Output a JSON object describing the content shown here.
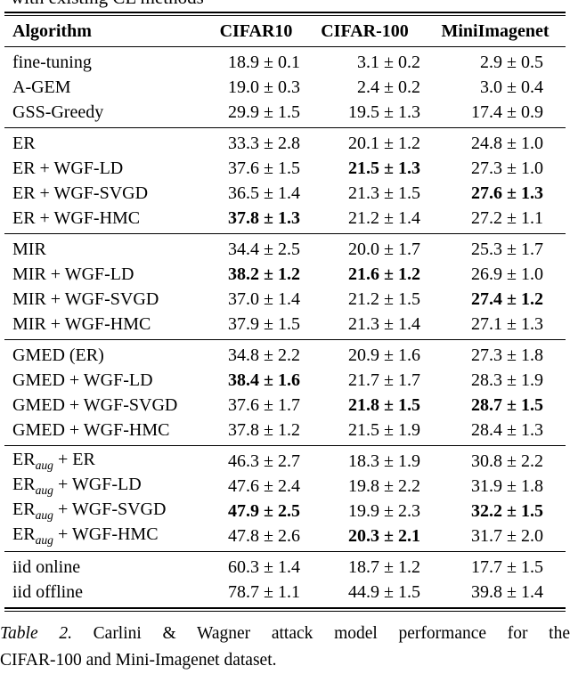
{
  "page": {
    "top_partial_text": "with existing CL methods",
    "caption": {
      "label": "Table 2.",
      "line1_rest": "Carlini & Wagner attack model performance for the",
      "line2": "CIFAR-100 and Mini-Imagenet dataset."
    }
  },
  "table": {
    "columns": [
      "Algorithm",
      "CIFAR10",
      "CIFAR-100",
      "MiniImagenet"
    ],
    "sections": [
      {
        "rows": [
          {
            "alg": [
              "fine-tuning",
              "",
              ""
            ],
            "values": [
              "18.9 ± 0.1",
              "3.1 ± 0.2",
              "2.9 ± 0.5"
            ],
            "bold": [
              false,
              false,
              false
            ]
          },
          {
            "alg": [
              "A-GEM",
              "",
              ""
            ],
            "values": [
              "19.0 ± 0.3",
              "2.4 ± 0.2",
              "3.0 ± 0.4"
            ],
            "bold": [
              false,
              false,
              false
            ]
          },
          {
            "alg": [
              "GSS-Greedy",
              "",
              ""
            ],
            "values": [
              "29.9 ± 1.5",
              "19.5 ± 1.3",
              "17.4 ± 0.9"
            ],
            "bold": [
              false,
              false,
              false
            ]
          }
        ]
      },
      {
        "rows": [
          {
            "alg": [
              "ER",
              "",
              ""
            ],
            "values": [
              "33.3 ± 2.8",
              "20.1 ± 1.2",
              "24.8 ± 1.0"
            ],
            "bold": [
              false,
              false,
              false
            ]
          },
          {
            "alg": [
              "ER + WGF-LD",
              "",
              ""
            ],
            "values": [
              "37.6 ± 1.5",
              "21.5 ± 1.3",
              "27.3 ± 1.0"
            ],
            "bold": [
              false,
              true,
              false
            ]
          },
          {
            "alg": [
              "ER + WGF-SVGD",
              "",
              ""
            ],
            "values": [
              "36.5 ± 1.4",
              "21.3 ± 1.5",
              "27.6 ± 1.3"
            ],
            "bold": [
              false,
              false,
              true
            ]
          },
          {
            "alg": [
              "ER + WGF-HMC",
              "",
              ""
            ],
            "values": [
              "37.8 ± 1.3",
              "21.2 ± 1.4",
              "27.2 ± 1.1"
            ],
            "bold": [
              true,
              false,
              false
            ]
          }
        ]
      },
      {
        "rows": [
          {
            "alg": [
              "MIR",
              "",
              ""
            ],
            "values": [
              "34.4 ± 2.5",
              "20.0 ± 1.7",
              "25.3 ± 1.7"
            ],
            "bold": [
              false,
              false,
              false
            ]
          },
          {
            "alg": [
              "MIR + WGF-LD",
              "",
              ""
            ],
            "values": [
              "38.2 ± 1.2",
              "21.6 ± 1.2",
              "26.9 ± 1.0"
            ],
            "bold": [
              true,
              true,
              false
            ]
          },
          {
            "alg": [
              "MIR + WGF-SVGD",
              "",
              ""
            ],
            "values": [
              "37.0 ± 1.4",
              "21.2 ± 1.5",
              "27.4 ± 1.2"
            ],
            "bold": [
              false,
              false,
              true
            ]
          },
          {
            "alg": [
              "MIR + WGF-HMC",
              "",
              ""
            ],
            "values": [
              "37.9 ± 1.5",
              "21.3 ± 1.4",
              "27.1 ± 1.3"
            ],
            "bold": [
              false,
              false,
              false
            ]
          }
        ]
      },
      {
        "rows": [
          {
            "alg": [
              "GMED (ER)",
              "",
              ""
            ],
            "values": [
              "34.8 ± 2.2",
              "20.9 ± 1.6",
              "27.3 ± 1.8"
            ],
            "bold": [
              false,
              false,
              false
            ]
          },
          {
            "alg": [
              "GMED + WGF-LD",
              "",
              ""
            ],
            "values": [
              "38.4 ± 1.6",
              "21.7 ± 1.7",
              "28.3 ± 1.9"
            ],
            "bold": [
              true,
              false,
              false
            ]
          },
          {
            "alg": [
              "GMED + WGF-SVGD",
              "",
              ""
            ],
            "values": [
              "37.6 ± 1.7",
              "21.8 ± 1.5",
              "28.7 ± 1.5"
            ],
            "bold": [
              false,
              true,
              true
            ]
          },
          {
            "alg": [
              "GMED + WGF-HMC",
              "",
              ""
            ],
            "values": [
              "37.8 ± 1.2",
              "21.5 ± 1.9",
              "28.4 ± 1.3"
            ],
            "bold": [
              false,
              false,
              false
            ]
          }
        ]
      },
      {
        "rows": [
          {
            "alg": [
              "ER",
              "aug",
              " + ER"
            ],
            "values": [
              "46.3 ± 2.7",
              "18.3 ± 1.9",
              "30.8 ± 2.2"
            ],
            "bold": [
              false,
              false,
              false
            ]
          },
          {
            "alg": [
              "ER",
              "aug",
              " + WGF-LD"
            ],
            "values": [
              "47.6 ± 2.4",
              "19.8 ± 2.2",
              "31.9 ± 1.8"
            ],
            "bold": [
              false,
              false,
              false
            ]
          },
          {
            "alg": [
              "ER",
              "aug",
              " + WGF-SVGD"
            ],
            "values": [
              "47.9 ± 2.5",
              "19.9 ± 2.3",
              "32.2 ± 1.5"
            ],
            "bold": [
              true,
              false,
              true
            ]
          },
          {
            "alg": [
              "ER",
              "aug",
              " + WGF-HMC"
            ],
            "values": [
              "47.8 ± 2.6",
              "20.3 ± 2.1",
              "31.7 ± 2.0"
            ],
            "bold": [
              false,
              true,
              false
            ]
          }
        ]
      },
      {
        "rows": [
          {
            "alg": [
              "iid online",
              "",
              ""
            ],
            "values": [
              "60.3 ± 1.4",
              "18.7 ± 1.2",
              "17.7 ± 1.5"
            ],
            "bold": [
              false,
              false,
              false
            ]
          },
          {
            "alg": [
              "iid offline",
              "",
              ""
            ],
            "values": [
              "78.7 ± 1.1",
              "44.9 ± 1.5",
              "39.8 ± 1.4"
            ],
            "bold": [
              false,
              false,
              false
            ]
          }
        ]
      }
    ]
  }
}
